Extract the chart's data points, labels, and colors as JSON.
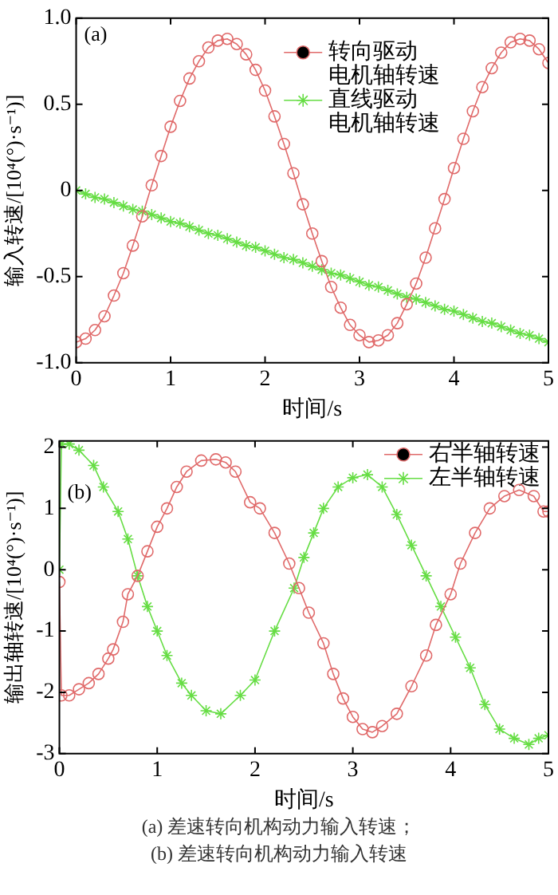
{
  "chart_data": [
    {
      "type": "line",
      "xlabel": "时间/s",
      "ylabel": "输入转速/[10⁴(°)·s⁻¹)]",
      "annotations": [
        "(a)"
      ],
      "legend": "top",
      "grid": false,
      "xlim": [
        0,
        5
      ],
      "xticks": [
        0,
        1,
        2,
        3,
        4,
        5
      ],
      "ylim": [
        -1,
        1
      ],
      "yticks": [
        {
          "value": -1,
          "label": "-1.0"
        },
        -0.5,
        0,
        0.5,
        {
          "value": 1,
          "label": "1.0"
        }
      ],
      "x": [
        0,
        0.1,
        0.2,
        0.3,
        0.4,
        0.5,
        0.6,
        0.7,
        0.8,
        0.9,
        1,
        1.1,
        1.2,
        1.3,
        1.4,
        1.5,
        1.6,
        1.7,
        1.8,
        1.9,
        2,
        2.1,
        2.2,
        2.3,
        2.4,
        2.5,
        2.6,
        2.7,
        2.8,
        2.9,
        3,
        3.1,
        3.2,
        3.3,
        3.4,
        3.5,
        3.6,
        3.7,
        3.8,
        3.9,
        4,
        4.1,
        4.2,
        4.3,
        4.4,
        4.5,
        4.6,
        4.7,
        4.8,
        4.9,
        5
      ],
      "series": [
        {
          "name": "转向驱动电机轴转速",
          "color": "#e06a6a",
          "marker": "circle",
          "values": [
            -0.88,
            -0.86,
            -0.81,
            -0.73,
            -0.61,
            -0.48,
            -0.32,
            -0.15,
            0.03,
            0.2,
            0.37,
            0.52,
            0.65,
            0.75,
            0.83,
            0.87,
            0.88,
            0.85,
            0.79,
            0.7,
            0.58,
            0.43,
            0.27,
            0.1,
            -0.08,
            -0.25,
            -0.41,
            -0.56,
            -0.68,
            -0.78,
            -0.84,
            -0.88,
            -0.87,
            -0.84,
            -0.77,
            -0.66,
            -0.54,
            -0.39,
            -0.22,
            -0.05,
            0.13,
            0.3,
            0.46,
            0.6,
            0.71,
            0.8,
            0.86,
            0.88,
            0.87,
            0.82,
            0.74
          ]
        },
        {
          "name": "直线驱动电机轴转速",
          "color": "#66dd44",
          "marker": "cross",
          "values": [
            0,
            -0.02,
            -0.04,
            -0.05,
            -0.07,
            -0.09,
            -0.11,
            -0.12,
            -0.14,
            -0.16,
            -0.18,
            -0.19,
            -0.21,
            -0.23,
            -0.25,
            -0.26,
            -0.28,
            -0.3,
            -0.32,
            -0.33,
            -0.35,
            -0.37,
            -0.39,
            -0.4,
            -0.42,
            -0.44,
            -0.46,
            -0.48,
            -0.49,
            -0.51,
            -0.53,
            -0.55,
            -0.56,
            -0.58,
            -0.6,
            -0.62,
            -0.63,
            -0.65,
            -0.67,
            -0.69,
            -0.7,
            -0.72,
            -0.74,
            -0.76,
            -0.77,
            -0.79,
            -0.81,
            -0.83,
            -0.84,
            -0.86,
            -0.88
          ]
        }
      ]
    },
    {
      "type": "line",
      "xlabel": "时间/s",
      "ylabel": "输出轴转速/[10⁴(°)·s⁻¹)]",
      "annotations": [
        "(b)",
        "(a) 差速转向机构动力输入转速；",
        "(b) 差速转向机构动力输入转速"
      ],
      "legend": "top right",
      "grid": false,
      "xlim": [
        0,
        5
      ],
      "xticks": [
        0,
        1,
        2,
        3,
        4,
        5
      ],
      "ylim": [
        -3,
        2.1
      ],
      "yticks": [
        -3,
        -2,
        -1,
        0,
        1,
        2
      ],
      "series": [
        {
          "name": "右半轴转速",
          "color": "#e06a6a",
          "marker": "circle",
          "x": [
            0,
            0.02,
            0.1,
            0.2,
            0.3,
            0.4,
            0.5,
            0.55,
            0.65,
            0.7,
            0.8,
            0.9,
            1,
            1.1,
            1.2,
            1.3,
            1.45,
            1.6,
            1.7,
            1.8,
            1.95,
            2.05,
            2.2,
            2.35,
            2.45,
            2.55,
            2.7,
            2.8,
            2.9,
            3,
            3.1,
            3.2,
            3.3,
            3.45,
            3.6,
            3.75,
            3.85,
            4,
            4.1,
            4.25,
            4.4,
            4.55,
            4.7,
            4.85,
            4.95,
            5
          ],
          "values": [
            -0.2,
            -2.05,
            -2.05,
            -1.95,
            -1.85,
            -1.7,
            -1.45,
            -1.3,
            -0.85,
            -0.4,
            -0.1,
            0.3,
            0.7,
            1,
            1.35,
            1.6,
            1.78,
            1.8,
            1.75,
            1.6,
            1.1,
            1,
            0.6,
            0.1,
            -0.3,
            -0.7,
            -1.2,
            -1.7,
            -2.1,
            -2.4,
            -2.6,
            -2.65,
            -2.55,
            -2.35,
            -1.9,
            -1.4,
            -0.9,
            -0.4,
            0.1,
            0.6,
            1,
            1.2,
            1.3,
            1.2,
            0.95,
            0.95
          ]
        },
        {
          "name": "左半轴转速",
          "color": "#66dd44",
          "marker": "cross",
          "x": [
            0,
            0.02,
            0.1,
            0.2,
            0.35,
            0.45,
            0.6,
            0.7,
            0.8,
            0.9,
            1,
            1.1,
            1.25,
            1.35,
            1.5,
            1.65,
            1.85,
            2,
            2.2,
            2.4,
            2.5,
            2.6,
            2.7,
            2.85,
            3,
            3.15,
            3.3,
            3.45,
            3.6,
            3.75,
            3.9,
            4.05,
            4.2,
            4.35,
            4.5,
            4.65,
            4.8,
            4.9,
            5
          ],
          "values": [
            0,
            2.05,
            2.05,
            1.95,
            1.7,
            1.35,
            0.95,
            0.5,
            -0.1,
            -0.6,
            -1,
            -1.4,
            -1.85,
            -2.05,
            -2.3,
            -2.35,
            -2.05,
            -1.8,
            -1,
            -0.3,
            0.2,
            0.6,
            1,
            1.35,
            1.5,
            1.55,
            1.35,
            0.9,
            0.4,
            -0.1,
            -0.6,
            -1.1,
            -1.6,
            -2.2,
            -2.6,
            -2.75,
            -2.85,
            -2.75,
            -2.7
          ]
        }
      ]
    }
  ]
}
